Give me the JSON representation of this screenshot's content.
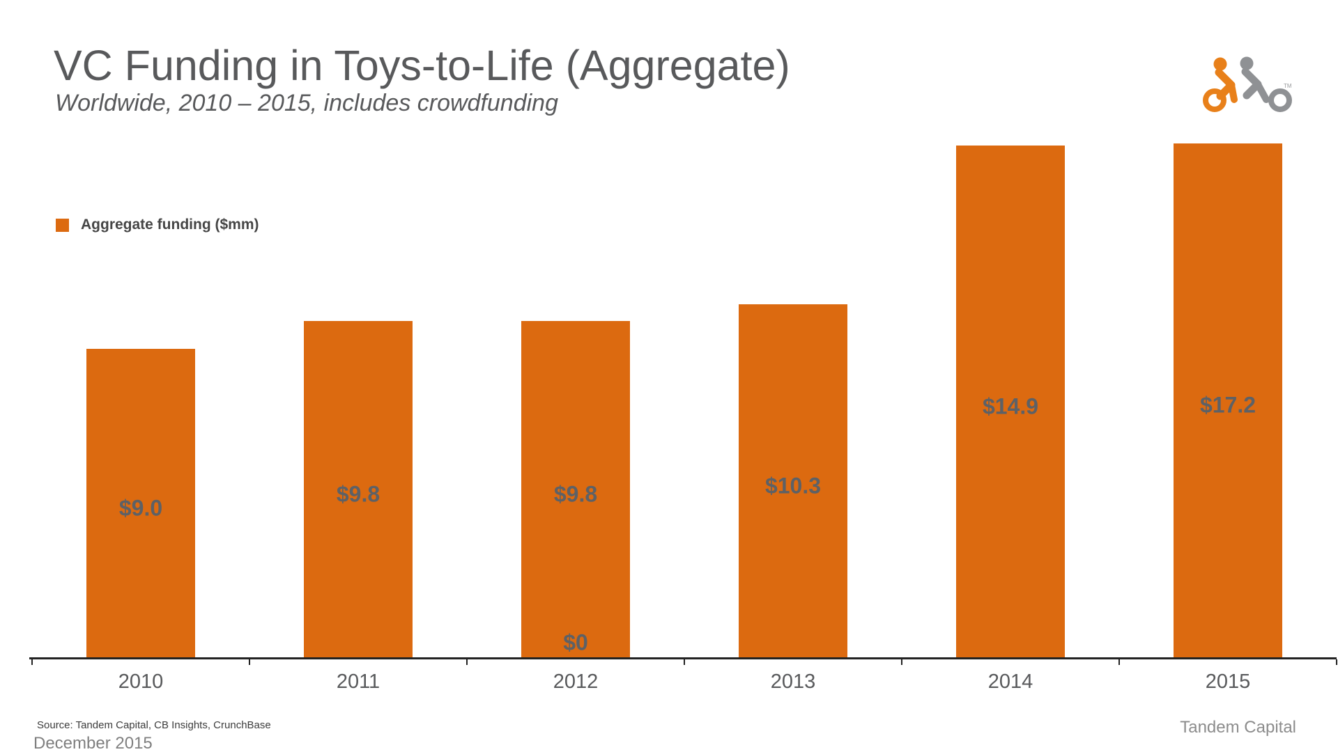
{
  "header": {
    "title": "VC Funding in Toys-to-Life (Aggregate)",
    "subtitle": "Worldwide, 2010 – 2015, includes crowdfunding"
  },
  "legend": {
    "series_label": "Aggregate funding ($mm)",
    "swatch_color": "#DC6A10"
  },
  "logo": {
    "trademark": "TM",
    "orange_color": "#E8801A",
    "gray_color": "#8F9194"
  },
  "chart_data": {
    "type": "bar",
    "title": "VC Funding in Toys-to-Life (Aggregate)",
    "subtitle": "Worldwide, 2010 – 2015, includes crowdfunding",
    "categories": [
      "2010",
      "2011",
      "2012",
      "2013",
      "2014",
      "2015"
    ],
    "series": [
      {
        "name": "Aggregate funding ($mm)",
        "values": [
          9.0,
          9.8,
          9.8,
          10.3,
          14.9,
          17.2
        ],
        "labels": [
          "$9.0",
          "$9.8",
          "$9.8",
          "$10.3",
          "$14.9",
          "$17.2"
        ],
        "color": "#DC6A10"
      }
    ],
    "extra_labels": [
      {
        "category": "2012",
        "text": "$0",
        "value": 0
      }
    ],
    "ylim": [
      0,
      15
    ],
    "clip_bars_at_ylim": true,
    "grid": false,
    "legend_position": "upper-left",
    "value_label_position": "inside-center",
    "axis_color": "#222222",
    "label_color": "#5D6166"
  },
  "footer": {
    "source": "Source: Tandem Capital, CB Insights, CrunchBase",
    "date": "December 2015",
    "brand": "Tandem Capital"
  }
}
